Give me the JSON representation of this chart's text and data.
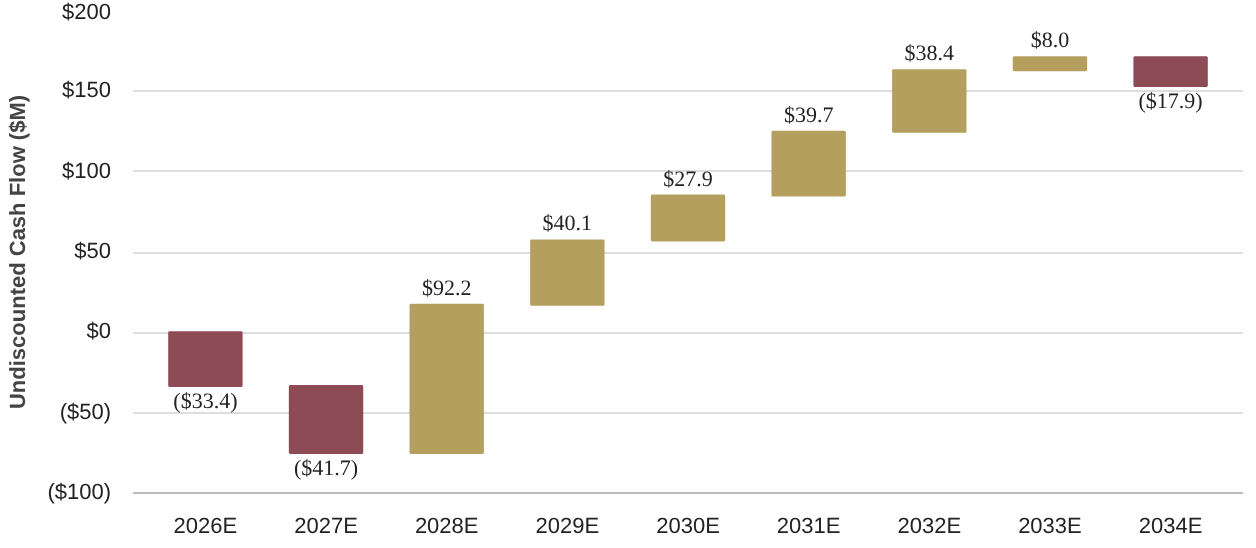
{
  "chart_data": {
    "type": "bar",
    "ylabel": "Undiscounted Cash Flow ($M)",
    "categories": [
      "2026E",
      "2027E",
      "2028E",
      "2029E",
      "2030E",
      "2031E",
      "2032E",
      "2033E",
      "2034E"
    ],
    "values": [
      -33.4,
      -41.7,
      92.2,
      40.1,
      27.9,
      39.7,
      38.4,
      8.0,
      -17.9
    ],
    "base": [
      0,
      -33.4,
      -75.1,
      17.1,
      57.2,
      85.1,
      124.8,
      163.2,
      171.2
    ],
    "colors": [
      "#8c4b55",
      "#8c4b55",
      "#b59f5f",
      "#b59f5f",
      "#b59f5f",
      "#b59f5f",
      "#b59f5f",
      "#b59f5f",
      "#8c4b55"
    ],
    "value_labels": [
      "($33.4)",
      "($41.7)",
      "$92.2",
      "$40.1",
      "$27.9",
      "$39.7",
      "$38.4",
      "$8.0",
      "($17.9)"
    ],
    "ylim": [
      -100,
      200
    ],
    "yticks": [
      {
        "value": -100,
        "label": "($100)"
      },
      {
        "value": -50,
        "label": "($50)"
      },
      {
        "value": 0,
        "label": "$0"
      },
      {
        "value": 50,
        "label": "$50"
      },
      {
        "value": 100,
        "label": "$100"
      },
      {
        "value": 150,
        "label": "$150"
      },
      {
        "value": 200,
        "label": "$200"
      }
    ],
    "grid": "y"
  }
}
